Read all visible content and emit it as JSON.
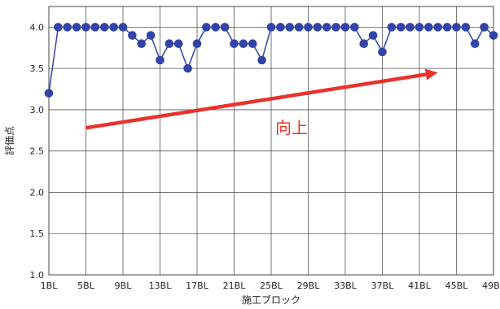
{
  "chart_data": {
    "type": "line",
    "title": "",
    "xlabel": "施工ブロック",
    "ylabel": "評価点",
    "ylim": [
      1.0,
      4.25
    ],
    "yticks": [
      "1.0",
      "1.5",
      "2.0",
      "2.5",
      "3.0",
      "3.5",
      "4.0"
    ],
    "grid": true,
    "legend": "none",
    "categories": [
      "1BL",
      "2BL",
      "3BL",
      "4BL",
      "5BL",
      "6BL",
      "7BL",
      "8BL",
      "9BL",
      "10BL",
      "11BL",
      "12BL",
      "13BL",
      "14BL",
      "15BL",
      "16BL",
      "17BL",
      "18BL",
      "19BL",
      "20BL",
      "21BL",
      "22BL",
      "23BL",
      "24BL",
      "25BL",
      "26BL",
      "27BL",
      "28BL",
      "29BL",
      "30BL",
      "31BL",
      "32BL",
      "33BL",
      "34BL",
      "35BL",
      "36BL",
      "37BL",
      "38BL",
      "39BL",
      "40BL",
      "41BL",
      "42BL",
      "43BL",
      "44BL",
      "45BL",
      "46BL",
      "47BL",
      "48BL",
      "49BL"
    ],
    "xtick_labels": [
      "1BL",
      "5BL",
      "9BL",
      "13BL",
      "17BL",
      "21BL",
      "25BL",
      "29BL",
      "33BL",
      "37BL",
      "41BL",
      "45BL",
      "49BL"
    ],
    "series": [
      {
        "color": "#3344a8",
        "values": [
          3.2,
          4.0,
          4.0,
          4.0,
          4.0,
          4.0,
          4.0,
          4.0,
          4.0,
          3.9,
          3.8,
          3.9,
          3.6,
          3.8,
          3.8,
          3.5,
          3.8,
          4.0,
          4.0,
          4.0,
          3.8,
          3.8,
          3.8,
          3.6,
          4.0,
          4.0,
          4.0,
          4.0,
          4.0,
          4.0,
          4.0,
          4.0,
          4.0,
          4.0,
          3.8,
          3.9,
          3.7,
          4.0,
          4.0,
          4.0,
          4.0,
          4.0,
          4.0,
          4.0,
          4.0,
          4.0,
          3.8,
          4.0,
          3.9
        ]
      }
    ],
    "annotations": [
      {
        "text": "向上",
        "color": "#e8322b",
        "arrow": {
          "from": [
            5,
            2.78
          ],
          "to": [
            43,
            3.45
          ]
        }
      }
    ]
  }
}
